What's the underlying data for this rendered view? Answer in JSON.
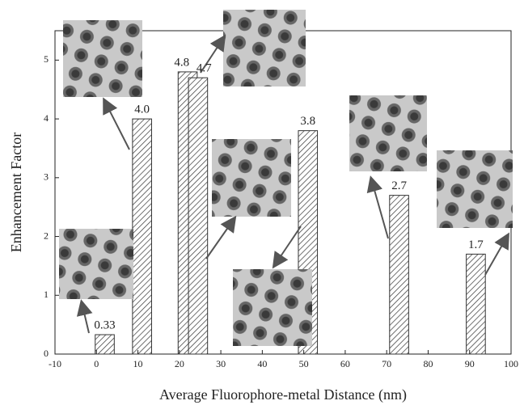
{
  "chart_data": {
    "type": "bar",
    "xlabel": "Average Fluorophore-metal Distance (nm)",
    "ylabel": "Enhancement Factor",
    "x": [
      2,
      11,
      22,
      24.5,
      51,
      73,
      91.5
    ],
    "values": [
      0.33,
      4.0,
      4.8,
      4.7,
      3.8,
      2.7,
      1.7
    ],
    "value_labels": [
      "0.33",
      "4.0",
      "4.8",
      "4.7",
      "3.8",
      "2.7",
      "1.7"
    ],
    "xlim": [
      -10,
      100
    ],
    "xticks": [
      -10,
      0,
      10,
      20,
      30,
      40,
      50,
      60,
      70,
      80,
      90,
      100
    ],
    "ylim": [
      0,
      5.5
    ],
    "yticks": [
      0,
      1,
      2,
      3,
      4,
      5
    ],
    "color": "#333333"
  }
}
